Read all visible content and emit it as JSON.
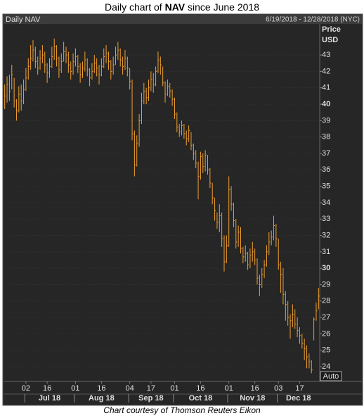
{
  "chart_data": {
    "type": "hlc",
    "title": [
      "Daily chart of ",
      "NAV",
      " since June 2018"
    ],
    "panel_title": "Daily NAV",
    "date_range": "6/19/2018 - 12/28/2018 (NYC)",
    "y_label": [
      "Price",
      "USD"
    ],
    "auto_label": "Auto",
    "credit": "Chart courtesy of Thomson Reuters Eikon",
    "color": "#f0a030",
    "grid": true,
    "categories": [
      "2018-06-19",
      "2018-06-20",
      "2018-06-21",
      "2018-06-22",
      "2018-06-25",
      "2018-06-26",
      "2018-06-27",
      "2018-06-28",
      "2018-06-29",
      "2018-07-02",
      "2018-07-03",
      "2018-07-05",
      "2018-07-06",
      "2018-07-09",
      "2018-07-10",
      "2018-07-11",
      "2018-07-12",
      "2018-07-13",
      "2018-07-16",
      "2018-07-17",
      "2018-07-18",
      "2018-07-19",
      "2018-07-20",
      "2018-07-23",
      "2018-07-24",
      "2018-07-25",
      "2018-07-26",
      "2018-07-27",
      "2018-07-30",
      "2018-07-31",
      "2018-08-01",
      "2018-08-02",
      "2018-08-03",
      "2018-08-06",
      "2018-08-07",
      "2018-08-08",
      "2018-08-09",
      "2018-08-10",
      "2018-08-13",
      "2018-08-14",
      "2018-08-15",
      "2018-08-16",
      "2018-08-17",
      "2018-08-20",
      "2018-08-21",
      "2018-08-22",
      "2018-08-23",
      "2018-08-24",
      "2018-08-27",
      "2018-08-28",
      "2018-08-29",
      "2018-08-30",
      "2018-08-31",
      "2018-09-04",
      "2018-09-05",
      "2018-09-06",
      "2018-09-07",
      "2018-09-10",
      "2018-09-11",
      "2018-09-12",
      "2018-09-13",
      "2018-09-14",
      "2018-09-17",
      "2018-09-18",
      "2018-09-19",
      "2018-09-20",
      "2018-09-21",
      "2018-09-24",
      "2018-09-25",
      "2018-09-26",
      "2018-09-27",
      "2018-09-28",
      "2018-10-01",
      "2018-10-02",
      "2018-10-03",
      "2018-10-04",
      "2018-10-05",
      "2018-10-08",
      "2018-10-09",
      "2018-10-10",
      "2018-10-11",
      "2018-10-12",
      "2018-10-15",
      "2018-10-16",
      "2018-10-17",
      "2018-10-18",
      "2018-10-19",
      "2018-10-22",
      "2018-10-23",
      "2018-10-24",
      "2018-10-25",
      "2018-10-26",
      "2018-10-29",
      "2018-10-30",
      "2018-10-31",
      "2018-11-01",
      "2018-11-02",
      "2018-11-05",
      "2018-11-06",
      "2018-11-07",
      "2018-11-08",
      "2018-11-09",
      "2018-11-12",
      "2018-11-13",
      "2018-11-14",
      "2018-11-15",
      "2018-11-16",
      "2018-11-19",
      "2018-11-20",
      "2018-11-21",
      "2018-11-23",
      "2018-11-26",
      "2018-11-27",
      "2018-11-28",
      "2018-11-29",
      "2018-11-30",
      "2018-12-03",
      "2018-12-04",
      "2018-12-06",
      "2018-12-07",
      "2018-12-10",
      "2018-12-11",
      "2018-12-12",
      "2018-12-13",
      "2018-12-14",
      "2018-12-17",
      "2018-12-18",
      "2018-12-19",
      "2018-12-20",
      "2018-12-21",
      "2018-12-24",
      "2018-12-26",
      "2018-12-27",
      "2018-12-28"
    ],
    "high": [
      41.2,
      41.7,
      41.8,
      42.4,
      41.6,
      40.3,
      41.1,
      41.2,
      41.5,
      42.2,
      42.8,
      43.6,
      43.9,
      43.5,
      42.9,
      43.3,
      43.6,
      43.2,
      42.5,
      42.8,
      43.5,
      44.0,
      43.6,
      42.9,
      43.1,
      43.8,
      43.5,
      43.2,
      42.6,
      43.1,
      43.4,
      43.0,
      42.5,
      42.6,
      43.2,
      42.8,
      42.2,
      42.5,
      43.0,
      42.8,
      42.4,
      42.8,
      43.4,
      43.6,
      43.2,
      42.7,
      42.9,
      43.5,
      43.8,
      43.4,
      42.9,
      43.3,
      42.9,
      42.2,
      41.5,
      38.4,
      38.1,
      39.4,
      40.7,
      41.3,
      41.0,
      41.5,
      42.0,
      41.9,
      42.3,
      43.2,
      42.9,
      42.3,
      41.4,
      41.5,
      41.3,
      40.9,
      40.4,
      39.5,
      38.8,
      39.0,
      38.8,
      38.4,
      38.7,
      38.3,
      37.6,
      37.2,
      36.5,
      37.1,
      37.0,
      37.2,
      36.9,
      36.1,
      35.2,
      34.3,
      33.4,
      33.9,
      33.4,
      32.0,
      32.0,
      35.6,
      35.0,
      34.0,
      33.0,
      32.6,
      32.5,
      31.3,
      31.4,
      31.0,
      31.2,
      31.6,
      31.2,
      30.6,
      29.6,
      30.0,
      30.5,
      31.4,
      32.2,
      32.3,
      33.2,
      32.7,
      31.8,
      30.4,
      30.0,
      28.6,
      28.0,
      27.2,
      27.8,
      27.5,
      27.0,
      26.4,
      26.0,
      25.7,
      25.3,
      24.8,
      24.4,
      27.0,
      27.9,
      28.8
    ],
    "low": [
      39.7,
      40.1,
      40.2,
      40.9,
      39.8,
      39.0,
      39.5,
      39.6,
      40.0,
      40.8,
      41.5,
      42.1,
      42.6,
      42.2,
      41.8,
      42.1,
      42.5,
      41.9,
      41.3,
      41.6,
      42.2,
      42.7,
      42.3,
      41.6,
      41.9,
      42.6,
      42.5,
      41.9,
      41.5,
      41.8,
      42.3,
      41.9,
      41.3,
      41.6,
      42.0,
      41.7,
      41.1,
      41.5,
      41.9,
      41.7,
      41.2,
      41.7,
      42.2,
      42.5,
      42.1,
      41.5,
      41.8,
      42.4,
      42.7,
      42.3,
      41.8,
      42.1,
      41.7,
      40.9,
      37.8,
      35.6,
      36.2,
      37.4,
      38.8,
      40.0,
      40.0,
      40.2,
      40.8,
      40.7,
      41.1,
      41.9,
      41.8,
      41.1,
      40.1,
      40.5,
      40.4,
      39.9,
      39.1,
      38.3,
      38.0,
      38.1,
      37.9,
      37.5,
      37.7,
      37.2,
      36.6,
      36.1,
      34.2,
      35.4,
      35.8,
      35.9,
      35.7,
      34.9,
      33.9,
      32.9,
      32.4,
      32.2,
      31.3,
      29.8,
      30.3,
      31.3,
      33.5,
      32.5,
      31.2,
      31.3,
      30.9,
      30.3,
      30.4,
      29.9,
      30.0,
      30.4,
      30.2,
      29.0,
      28.3,
      28.8,
      29.4,
      30.1,
      30.8,
      31.4,
      31.7,
      31.3,
      29.9,
      28.5,
      27.8,
      26.8,
      26.5,
      25.7,
      26.4,
      26.3,
      25.8,
      25.4,
      25.1,
      24.4,
      23.9,
      23.9,
      23.6,
      25.6,
      26.8,
      27.5
    ],
    "close": [
      40.5,
      41.2,
      40.8,
      41.8,
      40.2,
      39.6,
      40.6,
      40.2,
      40.9,
      41.6,
      42.3,
      42.8,
      43.3,
      42.6,
      42.2,
      42.8,
      43.0,
      42.4,
      41.9,
      42.3,
      42.9,
      43.5,
      42.8,
      42.1,
      42.6,
      43.2,
      43.0,
      42.4,
      42.0,
      42.6,
      42.9,
      42.3,
      41.8,
      42.2,
      42.7,
      42.1,
      41.6,
      42.0,
      42.5,
      42.2,
      41.8,
      42.3,
      42.9,
      43.1,
      42.6,
      42.0,
      42.4,
      43.0,
      43.3,
      42.7,
      42.3,
      42.8,
      42.2,
      41.4,
      38.2,
      36.3,
      37.6,
      39.0,
      40.2,
      40.8,
      40.4,
      41.0,
      41.5,
      41.2,
      42.0,
      42.7,
      42.4,
      41.3,
      40.6,
      41.1,
      40.8,
      40.3,
      39.4,
      38.6,
      38.3,
      38.7,
      38.2,
      37.9,
      38.4,
      37.5,
      37.0,
      36.4,
      35.6,
      36.8,
      36.2,
      36.9,
      36.0,
      35.2,
      34.3,
      33.5,
      32.8,
      33.2,
      31.8,
      30.4,
      31.4,
      34.8,
      33.9,
      32.9,
      31.6,
      32.2,
      31.2,
      30.7,
      30.9,
      30.2,
      30.8,
      31.0,
      30.5,
      29.4,
      29.0,
      29.6,
      30.2,
      31.0,
      31.6,
      31.9,
      32.6,
      31.8,
      30.2,
      29.6,
      28.4,
      27.8,
      27.0,
      26.8,
      27.2,
      26.6,
      26.2,
      25.9,
      25.4,
      25.1,
      24.6,
      24.3,
      23.8,
      26.9,
      27.4,
      28.3
    ],
    "xticks": [
      {
        "value": "2018-07-02",
        "label": "02"
      },
      {
        "value": "2018-07-16",
        "label": "16"
      },
      {
        "value": "2018-08-01",
        "label": "01"
      },
      {
        "value": "2018-08-16",
        "label": "16"
      },
      {
        "value": "2018-09-04",
        "label": "04"
      },
      {
        "value": "2018-09-17",
        "label": "17"
      },
      {
        "value": "2018-10-01",
        "label": "01"
      },
      {
        "value": "2018-10-16",
        "label": "16"
      },
      {
        "value": "2018-11-01",
        "label": "01"
      },
      {
        "value": "2018-11-16",
        "label": "16"
      },
      {
        "value": "2018-12-03",
        "label": "03"
      },
      {
        "value": "2018-12-17",
        "label": "17"
      }
    ],
    "xmonths": [
      {
        "value": "2018-07",
        "label": "Jul 18"
      },
      {
        "value": "2018-08",
        "label": "Aug 18"
      },
      {
        "value": "2018-09",
        "label": "Sep 18"
      },
      {
        "value": "2018-10",
        "label": "Oct 18"
      },
      {
        "value": "2018-11",
        "label": "Nov 18"
      },
      {
        "value": "2018-12",
        "label": "Dec 18"
      }
    ],
    "ylim": [
      23.1,
      44.85
    ],
    "yticks": [
      24,
      25,
      26,
      27,
      28,
      29,
      30,
      31,
      32,
      33,
      34,
      35,
      36,
      37,
      38,
      39,
      40,
      41,
      42,
      43
    ]
  }
}
